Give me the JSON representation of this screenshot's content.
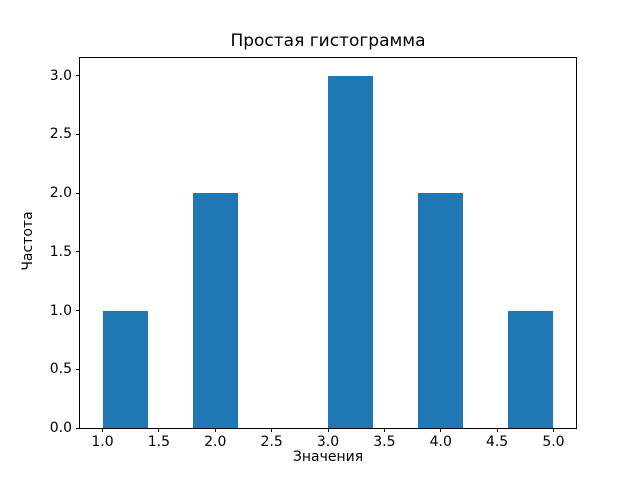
{
  "chart_data": {
    "type": "bar",
    "title": "Простая гистограмма",
    "xlabel": "Значения",
    "ylabel": "Частота",
    "bars": [
      {
        "x0": 1.0,
        "x1": 1.4,
        "value": 1
      },
      {
        "x0": 1.8,
        "x1": 2.2,
        "value": 2
      },
      {
        "x0": 3.0,
        "x1": 3.4,
        "value": 3
      },
      {
        "x0": 3.8,
        "x1": 4.2,
        "value": 2
      },
      {
        "x0": 4.6,
        "x1": 5.0,
        "value": 1
      }
    ],
    "categories": [
      1.2,
      2.0,
      3.2,
      4.0,
      4.8
    ],
    "values": [
      1,
      2,
      3,
      2,
      1
    ],
    "x_ticks": [
      1.0,
      1.5,
      2.0,
      2.5,
      3.0,
      3.5,
      4.0,
      4.5,
      5.0
    ],
    "y_ticks": [
      0.0,
      0.5,
      1.0,
      1.5,
      2.0,
      2.5,
      3.0
    ],
    "xlim": [
      0.8,
      5.2
    ],
    "ylim": [
      0,
      3.15
    ],
    "bar_color": "#1f77b4",
    "axis_color": "#000000",
    "background_color": "#ffffff",
    "grid": false,
    "legend": null
  }
}
